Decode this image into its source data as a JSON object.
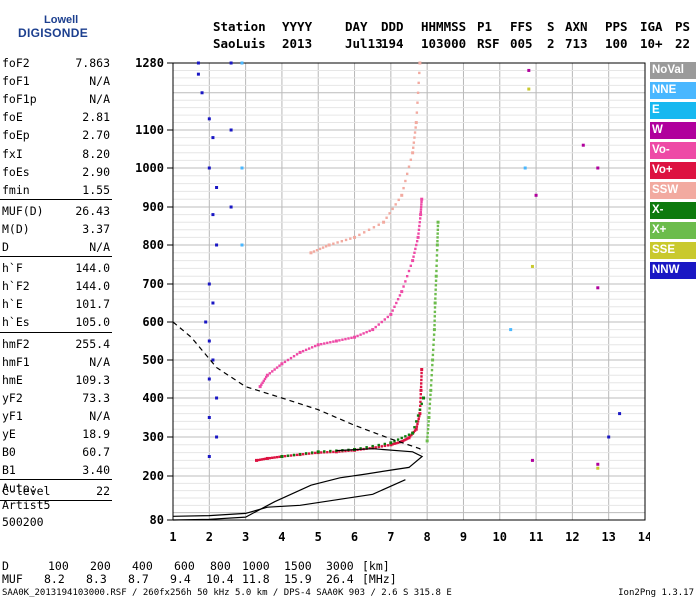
{
  "logo": {
    "top": "Lowell",
    "main": "DIGISONDE"
  },
  "header": {
    "row1": [
      "Station",
      "YYYY",
      "DAY",
      "DDD",
      "HHMMSS",
      "P1",
      "FFS",
      "S",
      "AXN",
      "PPS",
      "IGA",
      "PS"
    ],
    "row2": [
      "SaoLuis",
      "2013",
      "Jul13",
      "194",
      "103000",
      "RSF",
      "005",
      "2",
      "713",
      "100",
      "10+",
      "22"
    ]
  },
  "params": [
    {
      "k": "foF2",
      "v": "7.863"
    },
    {
      "k": "foF1",
      "v": "N/A"
    },
    {
      "k": "foF1p",
      "v": "N/A"
    },
    {
      "k": "foE",
      "v": "2.81"
    },
    {
      "k": "foEp",
      "v": "2.70"
    },
    {
      "k": "fxI",
      "v": "8.20"
    },
    {
      "k": "foEs",
      "v": "2.90"
    },
    {
      "k": "fmin",
      "v": "1.55"
    },
    {
      "k": "MUF(D)",
      "v": "26.43"
    },
    {
      "k": "M(D)",
      "v": "3.37"
    },
    {
      "k": "D",
      "v": "N/A"
    },
    {
      "k": "h`F",
      "v": "144.0"
    },
    {
      "k": "h`F2",
      "v": "144.0"
    },
    {
      "k": "h`E",
      "v": "101.7"
    },
    {
      "k": "h`Es",
      "v": "105.0"
    },
    {
      "k": "hmF2",
      "v": "255.4"
    },
    {
      "k": "hmF1",
      "v": "N/A"
    },
    {
      "k": "hmE",
      "v": "109.3"
    },
    {
      "k": "yF2",
      "v": "73.3"
    },
    {
      "k": "yF1",
      "v": "N/A"
    },
    {
      "k": "yE",
      "v": "18.9"
    },
    {
      "k": "B0",
      "v": "60.7"
    },
    {
      "k": "B1",
      "v": "3.40"
    },
    {
      "k": "C-level",
      "v": "22"
    }
  ],
  "auto": {
    "line1": "Auto:",
    "line2": "Artist5",
    "line3": "500200"
  },
  "legend": [
    {
      "label": "NoVal",
      "color": "#9a9a9a"
    },
    {
      "label": "NNE",
      "color": "#49b7ff"
    },
    {
      "label": "E",
      "color": "#17b8f0"
    },
    {
      "label": "W",
      "color": "#b0009c"
    },
    {
      "label": "Vo-",
      "color": "#ee4aa6"
    },
    {
      "label": "Vo+",
      "color": "#dd1241"
    },
    {
      "label": "SSW",
      "color": "#f2aaa0"
    },
    {
      "label": "X-",
      "color": "#0d7a0d"
    },
    {
      "label": "X+",
      "color": "#6cbc4c"
    },
    {
      "label": "SSE",
      "color": "#c9c92d"
    },
    {
      "label": "NNW",
      "color": "#1a17c4"
    }
  ],
  "muf_table": {
    "d_label": "D",
    "d_values": [
      "100",
      "200",
      "400",
      "600",
      "800",
      "1000",
      "1500",
      "3000"
    ],
    "d_unit": "[km]",
    "muf_label": "MUF",
    "muf_values": [
      "8.2",
      "8.3",
      "8.7",
      "9.4",
      "10.4",
      "11.8",
      "15.9",
      "26.4"
    ],
    "muf_unit": "[MHz]"
  },
  "footer": "SAA0K_2013194103000.RSF / 260fx256h 50 kHz 5.0 km / DPS-4 SAA0K 903 / 2.6 S 315.8 E",
  "version": "Ion2Png 1.3.17",
  "chart_data": {
    "type": "scatter",
    "xlim": [
      1,
      14
    ],
    "x_ticks": [
      1,
      2,
      3,
      4,
      5,
      6,
      7,
      8,
      9,
      10,
      11,
      12,
      13,
      14
    ],
    "y_ticks": [
      80,
      200,
      300,
      400,
      500,
      600,
      700,
      800,
      900,
      1000,
      1100,
      1280
    ],
    "y_scale": "piecewise",
    "y_values_mapping": "y_ticks",
    "grid": true,
    "legend_position": "right",
    "series": [
      {
        "name": "Vo+",
        "color": "#dd1241",
        "points": [
          [
            3.3,
            240
          ],
          [
            3.6,
            245
          ],
          [
            4.0,
            250
          ],
          [
            4.5,
            255
          ],
          [
            5.0,
            260
          ],
          [
            5.5,
            262
          ],
          [
            6.0,
            266
          ],
          [
            6.5,
            272
          ],
          [
            7.0,
            280
          ],
          [
            7.3,
            288
          ],
          [
            7.5,
            298
          ],
          [
            7.7,
            320
          ],
          [
            7.8,
            360
          ],
          [
            7.83,
            420
          ],
          [
            7.85,
            475
          ]
        ]
      },
      {
        "name": "Vo-",
        "color": "#ee4aa6",
        "points": [
          [
            3.4,
            430
          ],
          [
            3.6,
            460
          ],
          [
            4.0,
            490
          ],
          [
            4.5,
            520
          ],
          [
            5.0,
            540
          ],
          [
            5.5,
            550
          ],
          [
            6.0,
            560
          ],
          [
            6.5,
            580
          ],
          [
            7.0,
            620
          ],
          [
            7.3,
            680
          ],
          [
            7.6,
            760
          ],
          [
            7.75,
            820
          ],
          [
            7.82,
            880
          ],
          [
            7.85,
            920
          ]
        ]
      },
      {
        "name": "SSW",
        "color": "#f2aaa0",
        "points": [
          [
            4.8,
            780
          ],
          [
            5.3,
            800
          ],
          [
            6.0,
            820
          ],
          [
            6.8,
            860
          ],
          [
            7.3,
            930
          ],
          [
            7.6,
            1040
          ],
          [
            7.7,
            1120
          ],
          [
            7.8,
            1280
          ]
        ]
      },
      {
        "name": "X+",
        "color": "#6cbc4c",
        "points": [
          [
            8.0,
            290
          ],
          [
            8.05,
            350
          ],
          [
            8.1,
            420
          ],
          [
            8.15,
            500
          ],
          [
            8.2,
            580
          ],
          [
            8.22,
            650
          ],
          [
            8.25,
            720
          ],
          [
            8.28,
            800
          ],
          [
            8.3,
            860
          ]
        ]
      },
      {
        "name": "X-",
        "color": "#0d7a0d",
        "points": [
          [
            4.0,
            250
          ],
          [
            5.0,
            262
          ],
          [
            6.0,
            268
          ],
          [
            7.0,
            285
          ],
          [
            7.6,
            310
          ],
          [
            7.9,
            400
          ]
        ]
      },
      {
        "name": "NNW",
        "color": "#1a17c4",
        "points": [
          [
            1.7,
            1280
          ],
          [
            1.7,
            1250
          ],
          [
            1.8,
            1200
          ],
          [
            2.0,
            1130
          ],
          [
            2.1,
            1080
          ],
          [
            2.0,
            1000
          ],
          [
            2.2,
            950
          ],
          [
            2.1,
            880
          ],
          [
            2.2,
            800
          ],
          [
            2.0,
            700
          ],
          [
            2.1,
            650
          ],
          [
            1.9,
            600
          ],
          [
            2.0,
            550
          ],
          [
            2.1,
            500
          ],
          [
            2.0,
            450
          ],
          [
            2.2,
            400
          ],
          [
            2.0,
            350
          ],
          [
            2.2,
            300
          ],
          [
            2.0,
            250
          ],
          [
            2.6,
            1280
          ],
          [
            2.6,
            1100
          ],
          [
            2.6,
            900
          ],
          [
            13.3,
            360
          ],
          [
            13.0,
            300
          ]
        ]
      },
      {
        "name": "NNE",
        "color": "#49b7ff",
        "points": [
          [
            2.9,
            1280
          ],
          [
            2.9,
            1000
          ],
          [
            2.9,
            800
          ],
          [
            10.3,
            580
          ],
          [
            10.7,
            1000
          ]
        ]
      },
      {
        "name": "W",
        "color": "#b0009c",
        "points": [
          [
            10.8,
            1260
          ],
          [
            12.7,
            1000
          ],
          [
            12.7,
            690
          ],
          [
            12.3,
            1060
          ],
          [
            11.0,
            930
          ],
          [
            10.9,
            240
          ],
          [
            12.7,
            230
          ]
        ]
      },
      {
        "name": "SSE",
        "color": "#c9c92d",
        "points": [
          [
            10.8,
            1210
          ],
          [
            12.7,
            220
          ],
          [
            10.9,
            745
          ]
        ]
      }
    ],
    "profile_solid": [
      [
        1,
        80
      ],
      [
        2,
        82
      ],
      [
        3,
        88
      ],
      [
        3.8,
        130
      ],
      [
        4.8,
        175
      ],
      [
        5.6,
        195
      ],
      [
        6.3,
        205
      ],
      [
        7.0,
        215
      ],
      [
        7.5,
        222
      ],
      [
        7.86,
        250
      ],
      [
        7.6,
        262
      ],
      [
        6.5,
        270
      ],
      [
        5.5,
        265
      ]
    ],
    "profile_dashed": [
      [
        1,
        600
      ],
      [
        1.5,
        560
      ],
      [
        2.2,
        480
      ],
      [
        3.0,
        430
      ],
      [
        4.0,
        400
      ],
      [
        5.0,
        370
      ],
      [
        6.0,
        330
      ],
      [
        7.0,
        295
      ],
      [
        7.8,
        270
      ],
      [
        7.86,
        258
      ]
    ],
    "profile_lower": [
      [
        1,
        90
      ],
      [
        2,
        92
      ],
      [
        3,
        98
      ],
      [
        3.6,
        115
      ],
      [
        4.5,
        120
      ],
      [
        5.5,
        135
      ],
      [
        6.5,
        150
      ],
      [
        7.4,
        190
      ]
    ]
  }
}
